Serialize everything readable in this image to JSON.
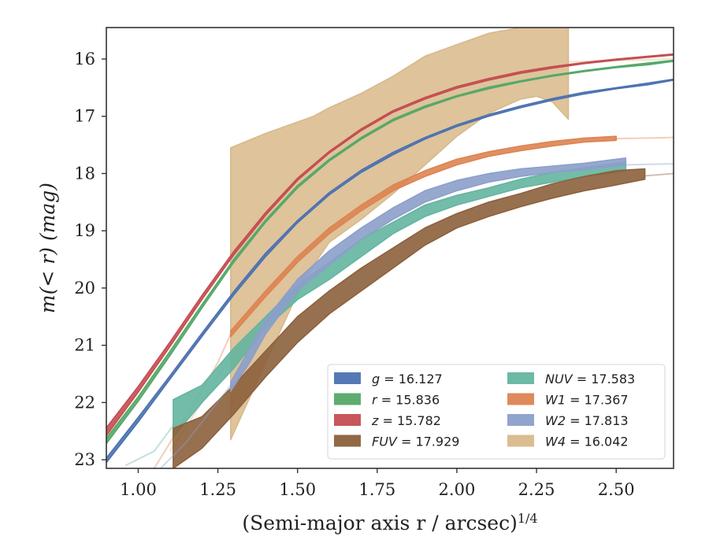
{
  "chart_data": {
    "type": "line",
    "xlabel": "(Semi-major axis r / arcsec)",
    "xlabel_exponent": "1/4",
    "ylabel": "m(< r) (mag)",
    "xlim": [
      0.9,
      2.68
    ],
    "ylim": [
      23.15,
      15.45
    ],
    "y_inverted": true,
    "grid": false,
    "legend_placement": "lower-right",
    "legend_columns": 2,
    "x_ticks": [
      "1.00",
      "1.25",
      "1.50",
      "1.75",
      "2.00",
      "2.25",
      "2.50"
    ],
    "x_tick_values": [
      1.0,
      1.25,
      1.5,
      1.75,
      2.0,
      2.25,
      2.5
    ],
    "y_ticks": [
      "16",
      "17",
      "18",
      "19",
      "20",
      "21",
      "22",
      "23"
    ],
    "y_tick_values": [
      16,
      17,
      18,
      19,
      20,
      21,
      22,
      23
    ],
    "series": [
      {
        "key": "g",
        "name": "g = 16.127",
        "color": "#4c72b0",
        "band_x": [
          0.9,
          1.0,
          1.1,
          1.2,
          1.3,
          1.4,
          1.5,
          1.6,
          1.7,
          1.8,
          1.9,
          2.0,
          2.1,
          2.2,
          2.3,
          2.4,
          2.5,
          2.6,
          2.68
        ],
        "band_lo": [
          23.05,
          22.34,
          21.59,
          20.85,
          20.12,
          19.45,
          18.86,
          18.37,
          17.98,
          17.67,
          17.4,
          17.18,
          17.0,
          16.85,
          16.72,
          16.61,
          16.52,
          16.45,
          16.37
        ],
        "band_hi": [
          22.97,
          22.26,
          21.53,
          20.79,
          20.06,
          19.39,
          18.82,
          18.33,
          17.94,
          17.63,
          17.37,
          17.15,
          16.97,
          16.82,
          16.69,
          16.58,
          16.5,
          16.42,
          16.35
        ],
        "faint_x": [],
        "faint_y": []
      },
      {
        "key": "r",
        "name": "r = 15.836",
        "color": "#55a868",
        "band_x": [
          0.9,
          1.0,
          1.1,
          1.2,
          1.3,
          1.4,
          1.5,
          1.6,
          1.7,
          1.8,
          1.9,
          2.0,
          2.1,
          2.2,
          2.3,
          2.4,
          2.5,
          2.6,
          2.68
        ],
        "band_lo": [
          22.72,
          21.98,
          21.18,
          20.35,
          19.55,
          18.85,
          18.25,
          17.78,
          17.4,
          17.08,
          16.85,
          16.66,
          16.52,
          16.4,
          16.3,
          16.22,
          16.15,
          16.1,
          16.04
        ],
        "band_hi": [
          22.62,
          21.9,
          21.1,
          20.29,
          19.5,
          18.81,
          18.21,
          17.75,
          17.37,
          17.05,
          16.82,
          16.64,
          16.49,
          16.38,
          16.28,
          16.2,
          16.13,
          16.07,
          16.02
        ],
        "faint_x": [],
        "faint_y": []
      },
      {
        "key": "z",
        "name": "z = 15.782",
        "color": "#c44e52",
        "band_x": [
          0.9,
          1.0,
          1.1,
          1.2,
          1.3,
          1.4,
          1.5,
          1.6,
          1.7,
          1.8,
          1.9,
          2.0,
          2.1,
          2.2,
          2.3,
          2.4,
          2.5,
          2.6,
          2.68
        ],
        "band_lo": [
          22.58,
          21.82,
          21.02,
          20.2,
          19.42,
          18.73,
          18.12,
          17.64,
          17.25,
          16.93,
          16.7,
          16.51,
          16.37,
          16.25,
          16.16,
          16.08,
          16.02,
          15.97,
          15.93
        ],
        "band_hi": [
          22.44,
          21.72,
          20.94,
          20.13,
          19.36,
          18.68,
          18.08,
          17.61,
          17.22,
          16.9,
          16.67,
          16.48,
          16.34,
          16.22,
          16.13,
          16.06,
          16.0,
          15.95,
          15.91
        ],
        "faint_x": [],
        "faint_y": []
      },
      {
        "key": "fuv",
        "name": "FUV = 17.929",
        "color": "#8c613c",
        "band_x": [
          1.11,
          1.2,
          1.3,
          1.4,
          1.5,
          1.6,
          1.7,
          1.8,
          1.9,
          2.0,
          2.1,
          2.2,
          2.3,
          2.4,
          2.5,
          2.59
        ],
        "band_lo": [
          23.15,
          22.8,
          22.2,
          21.55,
          20.95,
          20.45,
          20.05,
          19.65,
          19.25,
          18.95,
          18.75,
          18.58,
          18.43,
          18.3,
          18.2,
          18.1
        ],
        "band_hi": [
          22.45,
          22.25,
          21.7,
          21.1,
          20.5,
          20.05,
          19.65,
          19.3,
          18.95,
          18.7,
          18.5,
          18.35,
          18.18,
          18.05,
          17.95,
          17.92
        ],
        "faint_x": [
          2.59,
          2.68
        ],
        "faint_y": [
          18.04,
          18.0
        ]
      },
      {
        "key": "nuv",
        "name": "NUV = 17.583",
        "color": "#64b5a0",
        "band_x": [
          1.11,
          1.2,
          1.3,
          1.4,
          1.5,
          1.6,
          1.7,
          1.8,
          1.9,
          2.0,
          2.1,
          2.2,
          2.3,
          2.4,
          2.5,
          2.53
        ],
        "band_lo": [
          22.6,
          22.0,
          21.4,
          20.7,
          20.2,
          19.85,
          19.45,
          19.05,
          18.75,
          18.55,
          18.4,
          18.25,
          18.15,
          18.05,
          17.98,
          17.95
        ],
        "band_hi": [
          21.95,
          21.7,
          21.05,
          20.5,
          19.95,
          19.55,
          19.15,
          18.85,
          18.55,
          18.38,
          18.25,
          18.1,
          17.98,
          17.9,
          17.82,
          17.8
        ],
        "faint_x": [
          0.96,
          1.05,
          1.11
        ],
        "faint_y": [
          23.1,
          22.85,
          22.4
        ]
      },
      {
        "key": "w1",
        "name": "W1 = 17.367",
        "color": "#dd8452",
        "band_x": [
          1.29,
          1.4,
          1.5,
          1.6,
          1.7,
          1.8,
          1.9,
          2.0,
          2.1,
          2.2,
          2.3,
          2.4,
          2.5
        ],
        "band_lo": [
          20.85,
          20.15,
          19.55,
          19.05,
          18.65,
          18.3,
          18.05,
          17.85,
          17.7,
          17.6,
          17.52,
          17.45,
          17.42
        ],
        "band_hi": [
          20.75,
          20.05,
          19.45,
          18.95,
          18.55,
          18.2,
          17.95,
          17.75,
          17.62,
          17.52,
          17.44,
          17.38,
          17.35
        ],
        "faint_x": [
          1.05,
          1.1,
          1.15,
          1.2,
          1.25,
          1.29,
          1.29,
          2.5,
          2.6,
          2.68
        ],
        "faint_y": [
          23.15,
          22.7,
          22.25,
          21.8,
          21.3,
          20.8,
          null,
          17.39,
          17.38,
          17.37
        ]
      },
      {
        "key": "w2",
        "name": "W2 = 17.813",
        "color": "#8c9fca",
        "band_x": [
          1.29,
          1.35,
          1.4,
          1.5,
          1.6,
          1.7,
          1.8,
          1.9,
          2.0,
          2.1,
          2.2,
          2.3,
          2.4,
          2.5,
          2.53
        ],
        "band_lo": [
          21.8,
          21.3,
          20.8,
          20.05,
          19.6,
          19.15,
          18.8,
          18.5,
          18.3,
          18.15,
          18.05,
          17.98,
          17.93,
          17.87,
          17.85
        ],
        "band_hi": [
          21.65,
          21.05,
          20.55,
          19.85,
          19.35,
          18.95,
          18.6,
          18.3,
          18.12,
          18.0,
          17.92,
          17.87,
          17.82,
          17.75,
          17.73
        ],
        "faint_x": [
          1.07,
          1.15,
          1.22,
          1.29,
          1.29,
          2.53,
          2.6,
          2.68
        ],
        "faint_y": [
          23.15,
          22.7,
          22.2,
          21.7,
          null,
          17.85,
          17.84,
          17.83
        ]
      },
      {
        "key": "w4",
        "name": "W4 = 16.042",
        "color": "#d8b98a",
        "band_x": [
          1.29,
          1.4,
          1.5,
          1.55,
          1.6,
          1.7,
          1.8,
          1.9,
          2.0,
          2.1,
          2.2,
          2.25,
          2.3,
          2.35
        ],
        "band_lo": [
          22.65,
          21.3,
          20.1,
          19.6,
          19.2,
          18.8,
          18.35,
          17.85,
          17.35,
          16.95,
          16.7,
          16.65,
          16.75,
          17.05
        ],
        "band_hi": [
          17.55,
          17.3,
          17.1,
          17.0,
          16.85,
          16.6,
          16.3,
          15.95,
          15.75,
          15.55,
          15.45,
          15.45,
          15.45,
          15.45
        ],
        "faint_x": [
          1.1,
          1.2,
          1.29,
          1.29,
          2.35,
          2.45,
          2.55,
          2.68
        ],
        "faint_y": [
          22.85,
          22.0,
          21.2,
          null,
          16.05,
          16.03,
          16.02,
          16.0
        ]
      }
    ],
    "legend": [
      {
        "key": "g",
        "name": "g = 16.127",
        "color": "#4c72b0"
      },
      {
        "key": "r",
        "name": "r = 15.836",
        "color": "#55a868"
      },
      {
        "key": "z",
        "name": "z = 15.782",
        "color": "#c44e52"
      },
      {
        "key": "fuv",
        "name": "FUV = 17.929",
        "color": "#8c613c"
      },
      {
        "key": "nuv",
        "name": "NUV = 17.583",
        "color": "#64b5a0"
      },
      {
        "key": "w1",
        "name": "W1 = 17.367",
        "color": "#dd8452"
      },
      {
        "key": "w2",
        "name": "W2 = 17.813",
        "color": "#8c9fca"
      },
      {
        "key": "w4",
        "name": "W4 = 16.042",
        "color": "#d8b98a"
      }
    ]
  }
}
